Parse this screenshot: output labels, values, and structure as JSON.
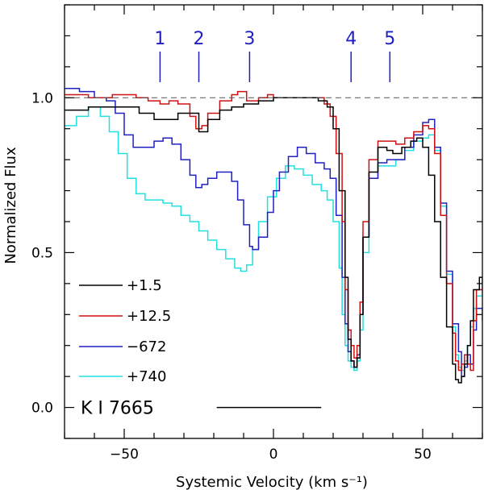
{
  "chart_data": {
    "type": "line",
    "title": "",
    "xlabel": "Systemic Velocity (km s⁻¹)",
    "ylabel": "Normalized Flux",
    "xlim": [
      -70,
      70
    ],
    "ylim": [
      -0.1,
      1.3
    ],
    "x_ticks": [
      -50,
      0,
      50
    ],
    "x_tick_labels": [
      "−50",
      "0",
      "50"
    ],
    "y_ticks": [
      0.0,
      0.5,
      1.0
    ],
    "y_tick_labels": [
      "0.0",
      "0.5",
      "1.0"
    ],
    "line_label": "K I 7665",
    "line_label_segment": [
      -19,
      16
    ],
    "continuum_level": 1.0,
    "components": [
      {
        "label": "1",
        "velocity": -38
      },
      {
        "label": "2",
        "velocity": -25
      },
      {
        "label": "3",
        "velocity": -8
      },
      {
        "label": "4",
        "velocity": 26
      },
      {
        "label": "5",
        "velocity": 39
      }
    ],
    "legend_position": "bottom-left",
    "series": [
      {
        "name": "+1.5",
        "color": "#000000",
        "points": [
          [
            -70,
            0.96
          ],
          [
            -62,
            0.97
          ],
          [
            -55,
            0.97
          ],
          [
            -50,
            0.97
          ],
          [
            -45,
            0.95
          ],
          [
            -40,
            0.93
          ],
          [
            -36,
            0.93
          ],
          [
            -32,
            0.95
          ],
          [
            -28,
            0.95
          ],
          [
            -25,
            0.89
          ],
          [
            -22,
            0.93
          ],
          [
            -18,
            0.96
          ],
          [
            -14,
            0.97
          ],
          [
            -10,
            0.98
          ],
          [
            -5,
            0.99
          ],
          [
            0,
            1.0
          ],
          [
            5,
            1.0
          ],
          [
            10,
            1.0
          ],
          [
            15,
            0.99
          ],
          [
            18,
            0.97
          ],
          [
            20,
            0.9
          ],
          [
            22,
            0.7
          ],
          [
            24,
            0.42
          ],
          [
            25,
            0.22
          ],
          [
            26,
            0.15
          ],
          [
            27,
            0.13
          ],
          [
            28,
            0.16
          ],
          [
            29,
            0.3
          ],
          [
            30,
            0.55
          ],
          [
            32,
            0.76
          ],
          [
            35,
            0.84
          ],
          [
            38,
            0.83
          ],
          [
            40,
            0.82
          ],
          [
            43,
            0.84
          ],
          [
            46,
            0.86
          ],
          [
            48,
            0.87
          ],
          [
            50,
            0.84
          ],
          [
            52,
            0.75
          ],
          [
            54,
            0.6
          ],
          [
            56,
            0.42
          ],
          [
            58,
            0.26
          ],
          [
            60,
            0.14
          ],
          [
            61,
            0.09
          ],
          [
            62,
            0.08
          ],
          [
            63,
            0.1
          ],
          [
            64,
            0.14
          ],
          [
            65,
            0.2
          ],
          [
            66,
            0.28
          ],
          [
            67,
            0.38
          ],
          [
            69,
            0.42
          ],
          [
            70,
            0.42
          ]
        ]
      },
      {
        "name": "+12.5",
        "color": "#d01010",
        "points": [
          [
            -70,
            1.01
          ],
          [
            -66,
            1.01
          ],
          [
            -62,
            1.0
          ],
          [
            -58,
            1.0
          ],
          [
            -54,
            1.01
          ],
          [
            -50,
            1.01
          ],
          [
            -46,
            1.0
          ],
          [
            -42,
            0.99
          ],
          [
            -38,
            0.98
          ],
          [
            -35,
            0.99
          ],
          [
            -32,
            0.98
          ],
          [
            -28,
            0.94
          ],
          [
            -26,
            0.9
          ],
          [
            -24,
            0.91
          ],
          [
            -22,
            0.95
          ],
          [
            -18,
            0.99
          ],
          [
            -14,
            1.01
          ],
          [
            -12,
            1.02
          ],
          [
            -9,
            0.99
          ],
          [
            -5,
            1.0
          ],
          [
            -2,
            1.01
          ],
          [
            0,
            1.0
          ],
          [
            4,
            1.0
          ],
          [
            8,
            1.0
          ],
          [
            12,
            1.0
          ],
          [
            15,
            1.0
          ],
          [
            17,
            0.98
          ],
          [
            19,
            0.94
          ],
          [
            21,
            0.82
          ],
          [
            23,
            0.6
          ],
          [
            24,
            0.38
          ],
          [
            25,
            0.25
          ],
          [
            26,
            0.2
          ],
          [
            27,
            0.16
          ],
          [
            28,
            0.2
          ],
          [
            29,
            0.34
          ],
          [
            30,
            0.6
          ],
          [
            32,
            0.8
          ],
          [
            35,
            0.86
          ],
          [
            38,
            0.86
          ],
          [
            41,
            0.85
          ],
          [
            44,
            0.87
          ],
          [
            47,
            0.89
          ],
          [
            50,
            0.91
          ],
          [
            52,
            0.9
          ],
          [
            54,
            0.82
          ],
          [
            56,
            0.62
          ],
          [
            58,
            0.4
          ],
          [
            60,
            0.24
          ],
          [
            61,
            0.15
          ],
          [
            62,
            0.12
          ],
          [
            63,
            0.14
          ],
          [
            64,
            0.17
          ],
          [
            65,
            0.14
          ],
          [
            66,
            0.12
          ],
          [
            67,
            0.28
          ],
          [
            68,
            0.38
          ],
          [
            70,
            0.42
          ]
        ]
      },
      {
        "name": "−672",
        "color": "#2020c0",
        "points": [
          [
            -70,
            1.03
          ],
          [
            -65,
            1.02
          ],
          [
            -60,
            1.0
          ],
          [
            -56,
            0.99
          ],
          [
            -53,
            0.95
          ],
          [
            -50,
            0.88
          ],
          [
            -47,
            0.84
          ],
          [
            -44,
            0.84
          ],
          [
            -40,
            0.86
          ],
          [
            -37,
            0.87
          ],
          [
            -34,
            0.85
          ],
          [
            -31,
            0.8
          ],
          [
            -28,
            0.75
          ],
          [
            -26,
            0.71
          ],
          [
            -24,
            0.72
          ],
          [
            -22,
            0.74
          ],
          [
            -19,
            0.76
          ],
          [
            -16,
            0.76
          ],
          [
            -14,
            0.73
          ],
          [
            -12,
            0.67
          ],
          [
            -10,
            0.59
          ],
          [
            -8,
            0.52
          ],
          [
            -7,
            0.51
          ],
          [
            -5,
            0.55
          ],
          [
            -2,
            0.63
          ],
          [
            0,
            0.7
          ],
          [
            2,
            0.76
          ],
          [
            5,
            0.81
          ],
          [
            8,
            0.84
          ],
          [
            11,
            0.82
          ],
          [
            14,
            0.79
          ],
          [
            17,
            0.77
          ],
          [
            19,
            0.74
          ],
          [
            21,
            0.62
          ],
          [
            23,
            0.42
          ],
          [
            24,
            0.27
          ],
          [
            25,
            0.18
          ],
          [
            26,
            0.15
          ],
          [
            27,
            0.13
          ],
          [
            28,
            0.17
          ],
          [
            29,
            0.3
          ],
          [
            30,
            0.55
          ],
          [
            32,
            0.74
          ],
          [
            35,
            0.79
          ],
          [
            38,
            0.8
          ],
          [
            41,
            0.8
          ],
          [
            44,
            0.84
          ],
          [
            47,
            0.88
          ],
          [
            50,
            0.92
          ],
          [
            52,
            0.93
          ],
          [
            54,
            0.84
          ],
          [
            56,
            0.66
          ],
          [
            58,
            0.44
          ],
          [
            60,
            0.27
          ],
          [
            62,
            0.18
          ],
          [
            63,
            0.1
          ],
          [
            64,
            0.13
          ],
          [
            65,
            0.17
          ],
          [
            66,
            0.14
          ],
          [
            67,
            0.25
          ],
          [
            68,
            0.32
          ],
          [
            70,
            0.28
          ]
        ]
      },
      {
        "name": "+740",
        "color": "#20e0e0",
        "points": [
          [
            -70,
            0.91
          ],
          [
            -66,
            0.94
          ],
          [
            -62,
            0.97
          ],
          [
            -60,
            0.97
          ],
          [
            -58,
            0.94
          ],
          [
            -55,
            0.89
          ],
          [
            -52,
            0.82
          ],
          [
            -49,
            0.74
          ],
          [
            -46,
            0.69
          ],
          [
            -43,
            0.67
          ],
          [
            -40,
            0.67
          ],
          [
            -37,
            0.66
          ],
          [
            -34,
            0.65
          ],
          [
            -31,
            0.62
          ],
          [
            -28,
            0.6
          ],
          [
            -25,
            0.57
          ],
          [
            -22,
            0.54
          ],
          [
            -19,
            0.51
          ],
          [
            -16,
            0.48
          ],
          [
            -13,
            0.45
          ],
          [
            -11,
            0.44
          ],
          [
            -9,
            0.46
          ],
          [
            -7,
            0.51
          ],
          [
            -5,
            0.6
          ],
          [
            -2,
            0.68
          ],
          [
            1,
            0.74
          ],
          [
            4,
            0.78
          ],
          [
            7,
            0.77
          ],
          [
            10,
            0.75
          ],
          [
            13,
            0.72
          ],
          [
            16,
            0.7
          ],
          [
            18,
            0.67
          ],
          [
            20,
            0.6
          ],
          [
            22,
            0.45
          ],
          [
            23,
            0.3
          ],
          [
            24,
            0.2
          ],
          [
            25,
            0.15
          ],
          [
            26,
            0.13
          ],
          [
            27,
            0.12
          ],
          [
            28,
            0.15
          ],
          [
            29,
            0.25
          ],
          [
            30,
            0.5
          ],
          [
            32,
            0.74
          ],
          [
            35,
            0.78
          ],
          [
            38,
            0.78
          ],
          [
            41,
            0.8
          ],
          [
            44,
            0.83
          ],
          [
            47,
            0.86
          ],
          [
            50,
            0.87
          ],
          [
            52,
            0.88
          ],
          [
            54,
            0.83
          ],
          [
            56,
            0.65
          ],
          [
            58,
            0.43
          ],
          [
            60,
            0.26
          ],
          [
            61,
            0.17
          ],
          [
            62,
            0.13
          ],
          [
            63,
            0.12
          ],
          [
            64,
            0.15
          ],
          [
            65,
            0.2
          ],
          [
            66,
            0.26
          ],
          [
            67,
            0.32
          ],
          [
            68,
            0.36
          ],
          [
            70,
            0.38
          ]
        ]
      }
    ]
  }
}
